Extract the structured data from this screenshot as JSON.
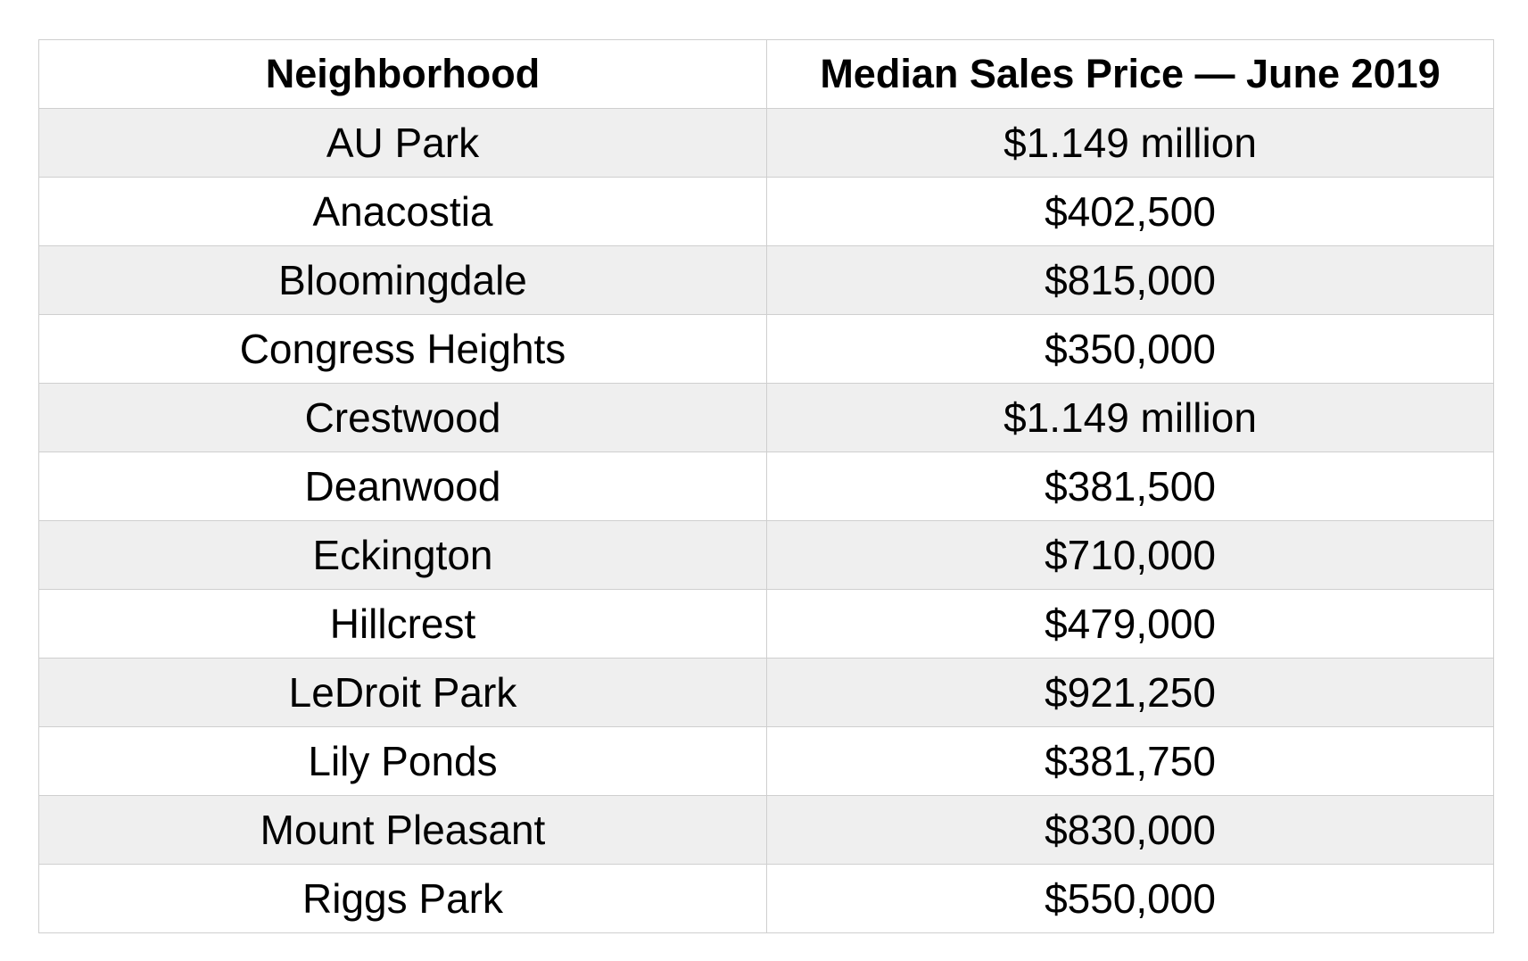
{
  "table": {
    "headers": [
      "Neighborhood",
      "Median Sales Price — June 2019"
    ],
    "rows": [
      [
        "AU Park",
        "$1.149 million"
      ],
      [
        "Anacostia",
        "$402,500"
      ],
      [
        "Bloomingdale",
        "$815,000"
      ],
      [
        "Congress Heights",
        "$350,000"
      ],
      [
        "Crestwood",
        "$1.149 million"
      ],
      [
        "Deanwood",
        "$381,500"
      ],
      [
        "Eckington",
        "$710,000"
      ],
      [
        "Hillcrest",
        "$479,000"
      ],
      [
        "LeDroit Park",
        "$921,250"
      ],
      [
        "Lily Ponds",
        "$381,750"
      ],
      [
        "Mount Pleasant",
        "$830,000"
      ],
      [
        "Riggs Park",
        "$550,000"
      ]
    ]
  },
  "colors": {
    "stripe": "#efefef",
    "background": "#ffffff",
    "border": "#cfcfcf",
    "text": "#000000"
  }
}
